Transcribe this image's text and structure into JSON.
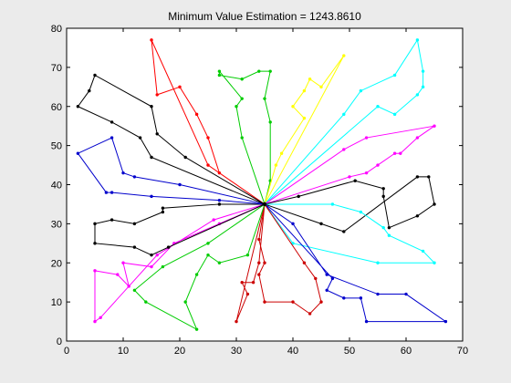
{
  "chart_data": {
    "type": "line",
    "title": "Minimum Value Estimation = 1243.8610",
    "xlabel": "",
    "ylabel": "",
    "xlim": [
      0,
      70
    ],
    "ylim": [
      0,
      80
    ],
    "xticks": [
      0,
      10,
      20,
      30,
      40,
      50,
      60,
      70
    ],
    "yticks": [
      0,
      10,
      20,
      30,
      40,
      50,
      60,
      70,
      80
    ],
    "grid": false,
    "depot": [
      35,
      35
    ],
    "series": [
      {
        "color": "#ff0000",
        "points": [
          [
            35,
            35
          ],
          [
            27,
            43
          ],
          [
            25,
            52
          ],
          [
            23,
            58
          ],
          [
            20,
            65
          ],
          [
            16,
            63
          ],
          [
            15,
            77
          ],
          [
            25,
            45
          ],
          [
            35,
            35
          ]
        ]
      },
      {
        "color": "#00cc00",
        "points": [
          [
            35,
            35
          ],
          [
            31,
            52
          ],
          [
            30,
            60
          ],
          [
            31,
            62
          ],
          [
            27,
            69
          ],
          [
            27,
            68
          ],
          [
            31,
            67
          ],
          [
            34,
            69
          ],
          [
            36,
            69
          ],
          [
            35,
            62
          ],
          [
            36,
            56
          ],
          [
            36,
            41
          ],
          [
            35,
            35
          ]
        ]
      },
      {
        "color": "#ffff00",
        "points": [
          [
            35,
            35
          ],
          [
            37,
            45
          ],
          [
            38,
            48
          ],
          [
            42,
            57
          ],
          [
            40,
            60
          ],
          [
            42,
            64
          ],
          [
            43,
            67
          ],
          [
            45,
            65
          ],
          [
            49,
            73
          ],
          [
            35,
            35
          ]
        ]
      },
      {
        "color": "#00ffff",
        "points": [
          [
            35,
            35
          ],
          [
            49,
            58
          ],
          [
            52,
            64
          ],
          [
            58,
            68
          ],
          [
            62,
            77
          ],
          [
            63,
            69
          ],
          [
            63,
            65
          ],
          [
            62,
            63
          ],
          [
            58,
            58
          ],
          [
            55,
            60
          ],
          [
            35,
            35
          ]
        ]
      },
      {
        "color": "#ff00ff",
        "points": [
          [
            35,
            35
          ],
          [
            49,
            49
          ],
          [
            53,
            52
          ],
          [
            65,
            55
          ],
          [
            62,
            52
          ],
          [
            59,
            48
          ],
          [
            58,
            48
          ],
          [
            55,
            45
          ],
          [
            53,
            43
          ],
          [
            50,
            42
          ],
          [
            35,
            35
          ]
        ]
      },
      {
        "color": "#000000",
        "points": [
          [
            35,
            35
          ],
          [
            41,
            37
          ],
          [
            51,
            41
          ],
          [
            56,
            39
          ],
          [
            56,
            37
          ],
          [
            57,
            29
          ],
          [
            62,
            32
          ],
          [
            65,
            35
          ],
          [
            64,
            42
          ],
          [
            62,
            42
          ],
          [
            49,
            28
          ],
          [
            45,
            30
          ],
          [
            35,
            35
          ]
        ]
      },
      {
        "color": "#00ffff",
        "points": [
          [
            35,
            35
          ],
          [
            47,
            35
          ],
          [
            52,
            33
          ],
          [
            56,
            29
          ],
          [
            57,
            27
          ],
          [
            63,
            23
          ],
          [
            65,
            20
          ],
          [
            55,
            20
          ],
          [
            40,
            25
          ],
          [
            35,
            35
          ]
        ]
      },
      {
        "color": "#0000cc",
        "points": [
          [
            35,
            35
          ],
          [
            40,
            30
          ],
          [
            46,
            17
          ],
          [
            55,
            12
          ],
          [
            60,
            12
          ],
          [
            67,
            5
          ],
          [
            53,
            5
          ],
          [
            52,
            11
          ],
          [
            49,
            11
          ],
          [
            46,
            13
          ],
          [
            47,
            16
          ],
          [
            35,
            35
          ]
        ]
      },
      {
        "color": "#cc0000",
        "points": [
          [
            35,
            35
          ],
          [
            34,
            26
          ],
          [
            35,
            20
          ],
          [
            34,
            17
          ],
          [
            35,
            10
          ],
          [
            40,
            10
          ],
          [
            43,
            7
          ],
          [
            45,
            10
          ],
          [
            44,
            16
          ],
          [
            42,
            20
          ],
          [
            35,
            35
          ]
        ]
      },
      {
        "color": "#cc0000",
        "points": [
          [
            35,
            35
          ],
          [
            34,
            20
          ],
          [
            33,
            15
          ],
          [
            31,
            15
          ],
          [
            32,
            12
          ],
          [
            30,
            5
          ],
          [
            35,
            35
          ]
        ]
      },
      {
        "color": "#00cc00",
        "points": [
          [
            35,
            35
          ],
          [
            32,
            22
          ],
          [
            27,
            20
          ],
          [
            25,
            22
          ],
          [
            23,
            17
          ],
          [
            21,
            10
          ],
          [
            23,
            3
          ],
          [
            14,
            10
          ],
          [
            12,
            13
          ],
          [
            17,
            19
          ],
          [
            25,
            25
          ],
          [
            35,
            35
          ]
        ]
      },
      {
        "color": "#ff00ff",
        "points": [
          [
            35,
            35
          ],
          [
            27,
            30
          ],
          [
            19,
            25
          ],
          [
            15,
            19
          ],
          [
            10,
            20
          ],
          [
            11,
            14
          ],
          [
            9,
            17
          ],
          [
            5,
            18
          ],
          [
            5,
            5
          ],
          [
            6,
            6
          ],
          [
            16,
            22
          ],
          [
            26,
            31
          ],
          [
            35,
            35
          ]
        ]
      },
      {
        "color": "#000000",
        "points": [
          [
            35,
            35
          ],
          [
            27,
            35
          ],
          [
            17,
            34
          ],
          [
            17,
            33
          ],
          [
            12,
            30
          ],
          [
            8,
            31
          ],
          [
            5,
            30
          ],
          [
            5,
            25
          ],
          [
            12,
            24
          ],
          [
            15,
            22
          ],
          [
            18,
            24
          ],
          [
            35,
            35
          ]
        ]
      },
      {
        "color": "#0000cc",
        "points": [
          [
            35,
            35
          ],
          [
            27,
            36
          ],
          [
            15,
            37
          ],
          [
            8,
            38
          ],
          [
            7,
            38
          ],
          [
            2,
            48
          ],
          [
            8,
            52
          ],
          [
            10,
            43
          ],
          [
            12,
            42
          ],
          [
            20,
            40
          ],
          [
            35,
            35
          ]
        ]
      },
      {
        "color": "#000000",
        "points": [
          [
            35,
            35
          ],
          [
            21,
            47
          ],
          [
            16,
            53
          ],
          [
            15,
            60
          ],
          [
            5,
            68
          ],
          [
            4,
            64
          ],
          [
            2,
            60
          ],
          [
            8,
            56
          ],
          [
            13,
            52
          ],
          [
            15,
            47
          ],
          [
            35,
            35
          ]
        ]
      }
    ]
  }
}
